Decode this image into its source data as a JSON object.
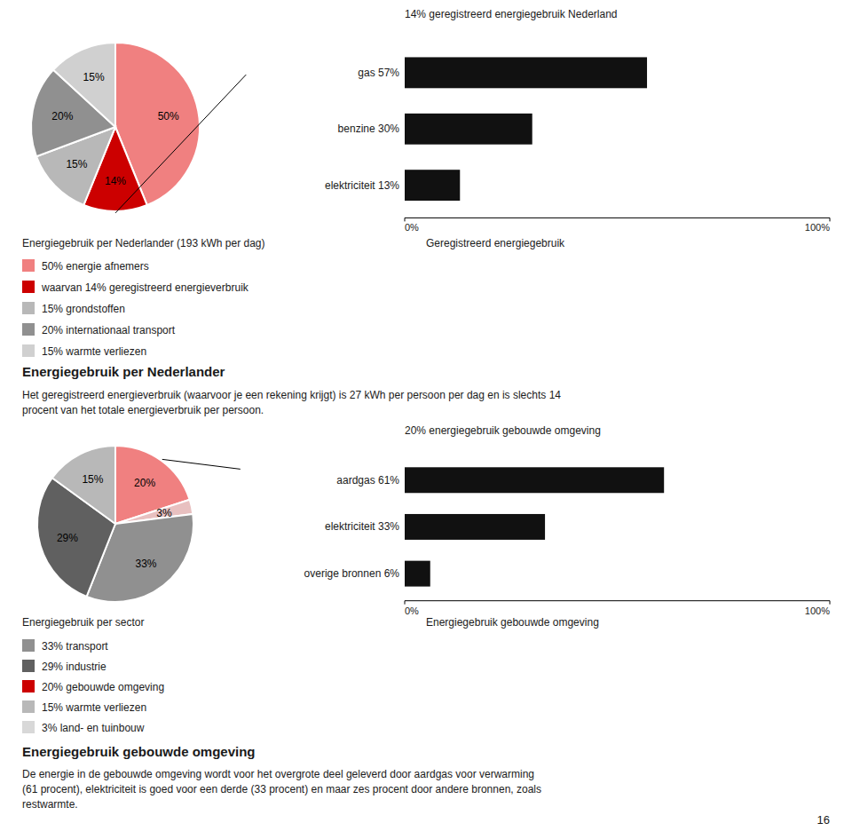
{
  "chart_data": [
    {
      "type": "pie",
      "title": "Energiegebruik per Nederlander (193 kWh per dag)",
      "values": [
        50,
        14,
        15,
        20,
        15
      ],
      "value_labels": [
        "50%",
        "14%",
        "15%",
        "20%",
        "15%"
      ],
      "colors": [
        "#f08080",
        "#cc0000",
        "#b8b8b8",
        "#909090",
        "#d0d0d0"
      ],
      "data_labels": true,
      "annotations": [
        "Energiegebruik per Nederlander",
        "Het geregistreerd energieverbruik (waarvoor je een rekening krijgt) is 27 kWh per persoon per dag en is slechts 14\nprocent van het totale energieverbruik per persoon."
      ]
    },
    {
      "type": "bar",
      "orientation": "horizontal",
      "title": "Geregistreerd energiegebruik",
      "annotations": [
        "14% geregistreerd energiegebruik Nederland"
      ],
      "categories": [
        "gas 57%",
        "benzine 30%",
        "elektriciteit 13%"
      ],
      "values": [
        57,
        30,
        13
      ],
      "color": "#111111",
      "xlim": [
        0,
        100
      ],
      "xticks": [
        {
          "value": 0,
          "label": "0%"
        },
        {
          "value": 100,
          "label": "100%"
        }
      ]
    },
    {
      "type": "legend",
      "series": [
        {
          "name": "50% energie afnemers",
          "color": "#f08080"
        },
        {
          "name": "waarvan 14% geregistreerd energieverbruik",
          "color": "#cc0000"
        },
        {
          "name": "15% grondstoffen",
          "color": "#b8b8b8"
        },
        {
          "name": "20% internationaal transport",
          "color": "#909090"
        },
        {
          "name": "15% warmte verliezen",
          "color": "#d0d0d0"
        }
      ]
    },
    {
      "type": "pie",
      "title": "Energiegebruik per sector",
      "values": [
        20,
        3,
        33,
        29,
        15
      ],
      "value_labels": [
        "20%",
        "3%",
        "33%",
        "29%",
        "15%"
      ],
      "colors": [
        "#f08080",
        "#e8c0c0",
        "#909090",
        "#606060",
        "#b8b8b8"
      ],
      "data_labels": true,
      "annotations": [
        "Energiegebruik gebouwde omgeving",
        "De energie in de gebouwde omgeving wordt voor het overgrote deel geleverd door aardgas voor verwarming\n(61 procent), elektriciteit is goed voor een derde (33 procent) en maar zes procent door andere bronnen, zoals\nrestwarmte.",
        "16"
      ]
    },
    {
      "type": "bar",
      "orientation": "horizontal",
      "title": "Energiegebruik gebouwde omgeving",
      "annotations": [
        "20% energiegebruik gebouwde omgeving"
      ],
      "categories": [
        "aardgas 61%",
        "elektriciteit 33%",
        "overige bronnen 6%"
      ],
      "values": [
        61,
        33,
        6
      ],
      "color": "#111111",
      "xlim": [
        0,
        100
      ],
      "xticks": [
        {
          "value": 0,
          "label": "0%"
        },
        {
          "value": 100,
          "label": "100%"
        }
      ]
    },
    {
      "type": "legend",
      "series": [
        {
          "name": "33% transport",
          "color": "#909090"
        },
        {
          "name": "29% industrie",
          "color": "#606060"
        },
        {
          "name": "20% gebouwde omgeving",
          "color": "#cc0000"
        },
        {
          "name": "15% warmte verliezen",
          "color": "#b8b8b8"
        },
        {
          "name": "3% land- en tuinbouw",
          "color": "#d8d8d8"
        }
      ]
    }
  ]
}
